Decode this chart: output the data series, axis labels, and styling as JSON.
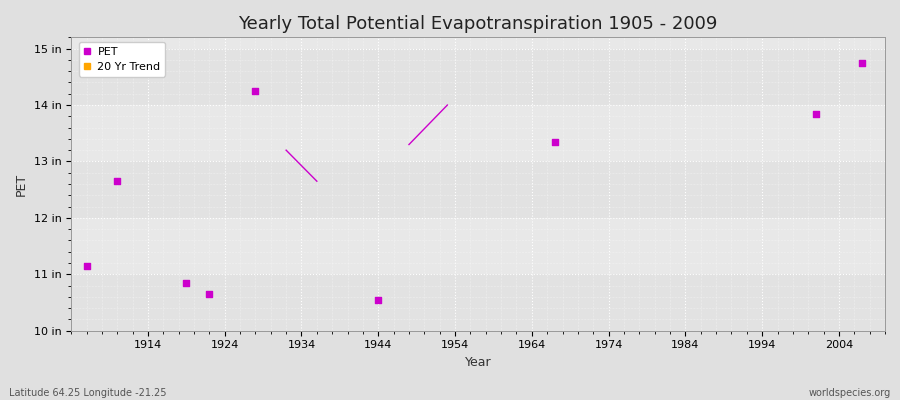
{
  "title": "Yearly Total Potential Evapotranspiration 1905 - 2009",
  "xlabel": "Year",
  "ylabel": "PET",
  "background_color": "#e0e0e0",
  "plot_bg_color": "#e8e8e8",
  "xlim": [
    1904,
    2010
  ],
  "ylim": [
    10,
    15.2
  ],
  "yticks": [
    10,
    11,
    12,
    13,
    14,
    15
  ],
  "ytick_labels": [
    "10 in",
    "11 in",
    "12 in",
    "13 in",
    "14 in",
    "15 in"
  ],
  "xticks": [
    1914,
    1924,
    1934,
    1944,
    1954,
    1964,
    1974,
    1984,
    1994,
    2004
  ],
  "pet_years": [
    1906,
    1910,
    1919,
    1922,
    1928,
    1944,
    1967,
    2001,
    2007
  ],
  "pet_values": [
    11.15,
    12.65,
    10.85,
    10.65,
    14.25,
    10.55,
    13.35,
    13.85,
    14.75
  ],
  "trend1_years": [
    1932,
    1936
  ],
  "trend1_values": [
    13.2,
    12.65
  ],
  "trend2_years": [
    1948,
    1953
  ],
  "trend2_values": [
    13.3,
    14.0
  ],
  "pet_color": "#cc00cc",
  "trend_color": "#cc00cc",
  "marker": "s",
  "marker_size": 4,
  "footnote_left": "Latitude 64.25 Longitude -21.25",
  "footnote_right": "worldspecies.org",
  "title_fontsize": 13,
  "axis_label_fontsize": 9,
  "tick_fontsize": 8,
  "legend_fontsize": 8,
  "trend_legend_color": "#ffa500"
}
